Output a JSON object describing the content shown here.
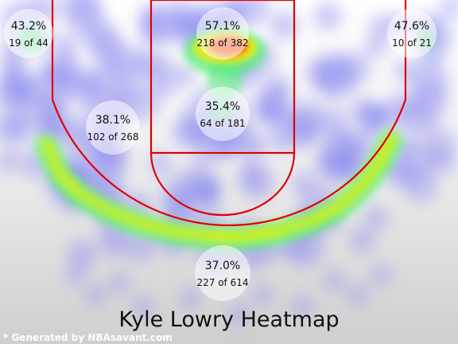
{
  "chart_data": {
    "type": "heatmap",
    "title": "Kyle Lowry Heatmap",
    "credit": "* Generated by NBAsavant.com",
    "colors": {
      "court_lines": "#e00000",
      "cold": "#8c8cf0",
      "mid": "#5af078",
      "warm": "#f0f000",
      "hot": "#ff3a1e"
    },
    "zones": [
      {
        "name": "left-corner-three",
        "pct": "43.2%",
        "made": 19,
        "attempts": 44,
        "count_label": "19 of 44"
      },
      {
        "name": "restricted-area",
        "pct": "57.1%",
        "made": 218,
        "attempts": 382,
        "count_label": "218 of 382"
      },
      {
        "name": "right-corner-three",
        "pct": "47.6%",
        "made": 10,
        "attempts": 21,
        "count_label": "10 of 21"
      },
      {
        "name": "left-mid-range",
        "pct": "38.1%",
        "made": 102,
        "attempts": 268,
        "count_label": "102 of 268"
      },
      {
        "name": "paint-non-ra",
        "pct": "35.4%",
        "made": 64,
        "attempts": 181,
        "count_label": "64 of 181"
      },
      {
        "name": "above-break-three",
        "pct": "37.0%",
        "made": 227,
        "attempts": 614,
        "count_label": "227 of 614"
      }
    ]
  }
}
